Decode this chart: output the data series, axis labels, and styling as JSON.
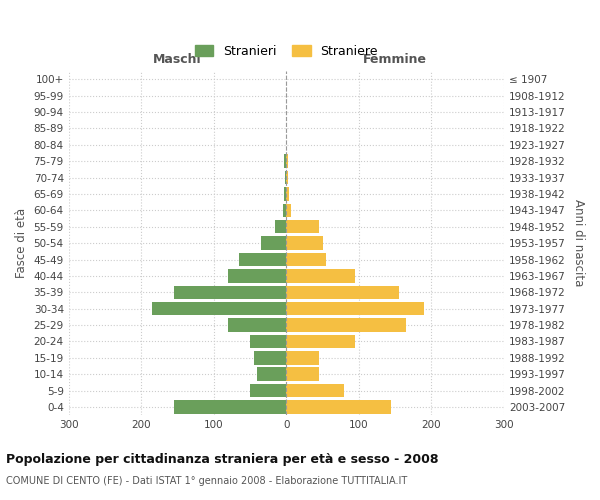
{
  "age_groups": [
    "0-4",
    "5-9",
    "10-14",
    "15-19",
    "20-24",
    "25-29",
    "30-34",
    "35-39",
    "40-44",
    "45-49",
    "50-54",
    "55-59",
    "60-64",
    "65-69",
    "70-74",
    "75-79",
    "80-84",
    "85-89",
    "90-94",
    "95-99",
    "100+"
  ],
  "birth_years": [
    "2003-2007",
    "1998-2002",
    "1993-1997",
    "1988-1992",
    "1983-1987",
    "1978-1982",
    "1973-1977",
    "1968-1972",
    "1963-1967",
    "1958-1962",
    "1953-1957",
    "1948-1952",
    "1943-1947",
    "1938-1942",
    "1933-1937",
    "1928-1932",
    "1923-1927",
    "1918-1922",
    "1913-1917",
    "1908-1912",
    "≤ 1907"
  ],
  "maschi": [
    155,
    50,
    40,
    45,
    50,
    80,
    185,
    155,
    80,
    65,
    35,
    15,
    5,
    3,
    2,
    3,
    0,
    0,
    0,
    0,
    0
  ],
  "femmine": [
    145,
    80,
    45,
    45,
    95,
    165,
    190,
    155,
    95,
    55,
    50,
    45,
    7,
    4,
    3,
    2,
    0,
    0,
    0,
    0,
    0
  ],
  "maschi_color": "#6a9f5b",
  "femmine_color": "#f5bf42",
  "background_color": "#ffffff",
  "grid_color": "#cccccc",
  "title": "Popolazione per cittadinanza straniera per età e sesso - 2008",
  "subtitle": "COMUNE DI CENTO (FE) - Dati ISTAT 1° gennaio 2008 - Elaborazione TUTTITALIA.IT",
  "xlabel_left": "Maschi",
  "xlabel_right": "Femmine",
  "ylabel_left": "Fasce di età",
  "ylabel_right": "Anni di nascita",
  "legend_maschi": "Stranieri",
  "legend_femmine": "Straniere",
  "xlim": 300
}
